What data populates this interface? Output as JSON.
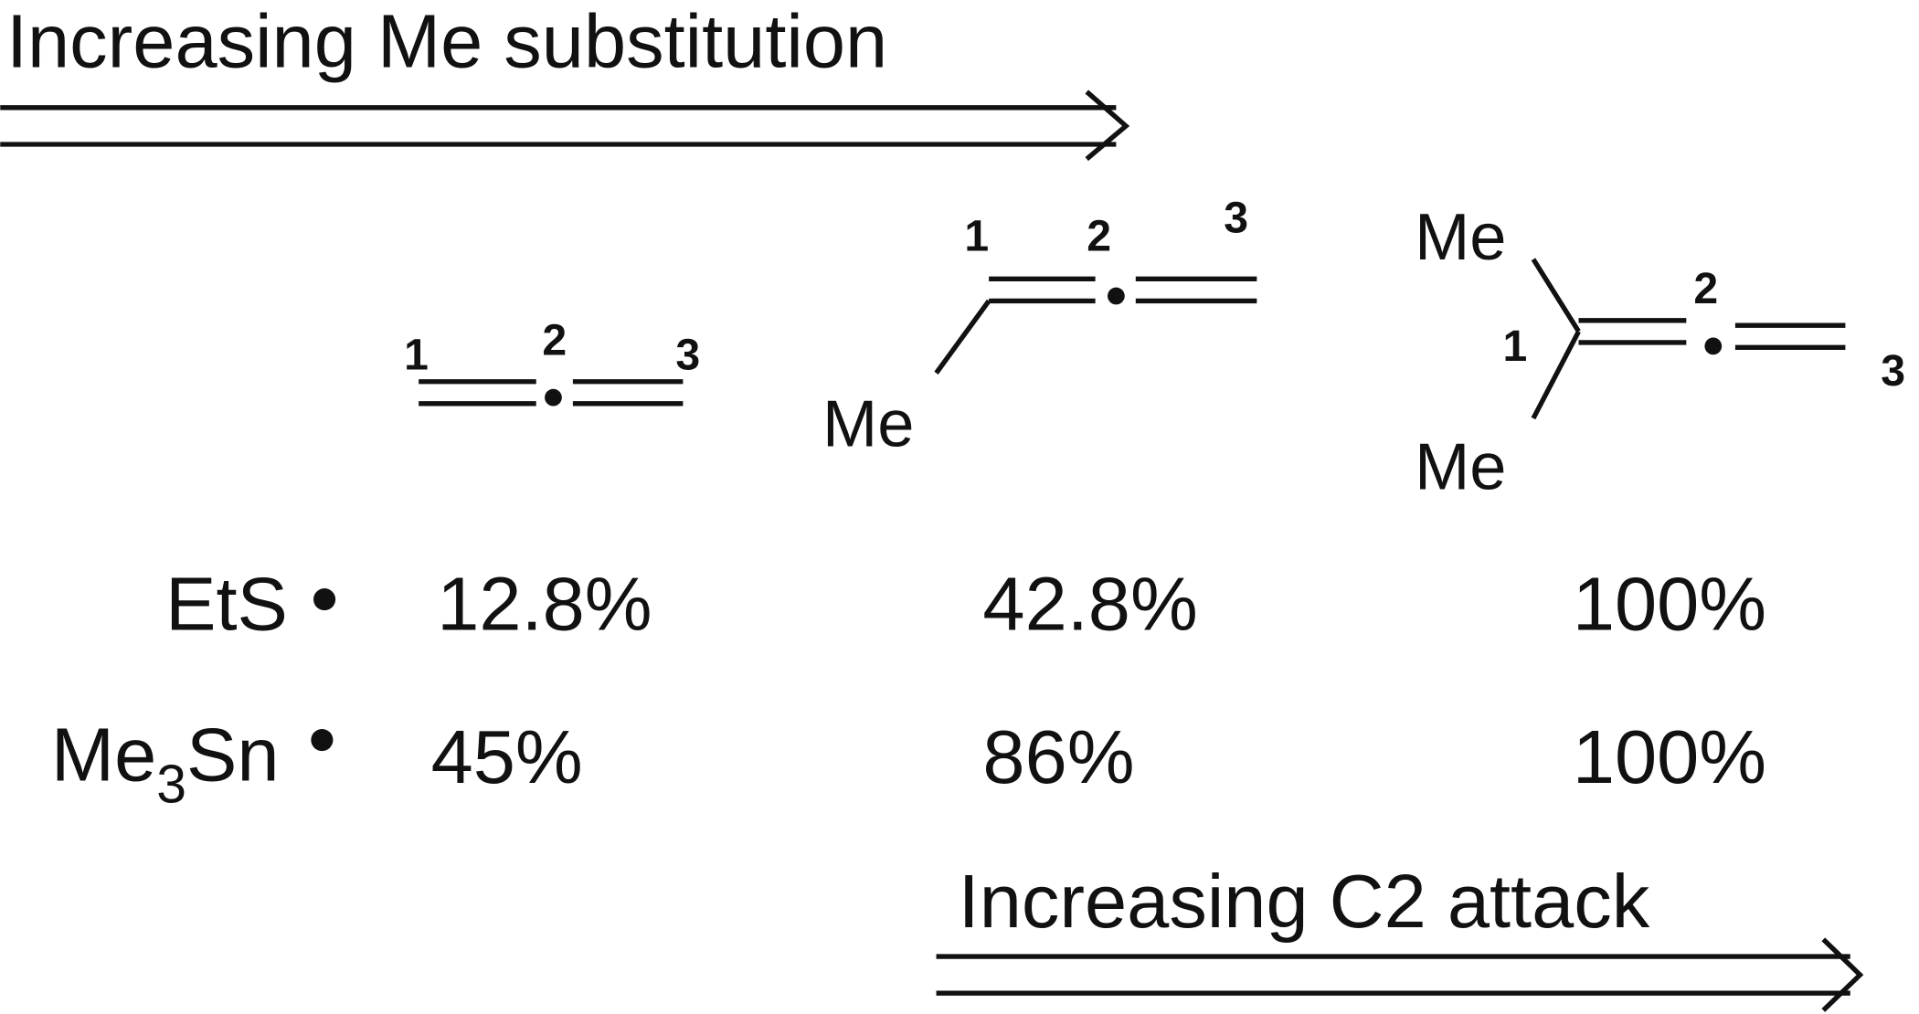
{
  "arrows": [
    {
      "label": "Increasing Me substitution"
    },
    {
      "label": "Increasing C2 attack"
    }
  ],
  "structures": [
    {
      "atoms": [
        "1",
        "2",
        "3"
      ],
      "substituents": []
    },
    {
      "atoms": [
        "1",
        "2",
        "3"
      ],
      "substituents": [
        "Me"
      ]
    },
    {
      "atoms": [
        "1",
        "2",
        "3"
      ],
      "substituents": [
        "Me",
        "Me"
      ]
    }
  ],
  "rows": [
    {
      "radical": {
        "prefix": "EtS"
      },
      "values": [
        "12.8%",
        "42.8%",
        "100%"
      ]
    },
    {
      "radical": {
        "prefix": "Me",
        "subscript": "3",
        "suffix": "Sn"
      },
      "values": [
        "45%",
        "86%",
        "100%"
      ]
    }
  ]
}
